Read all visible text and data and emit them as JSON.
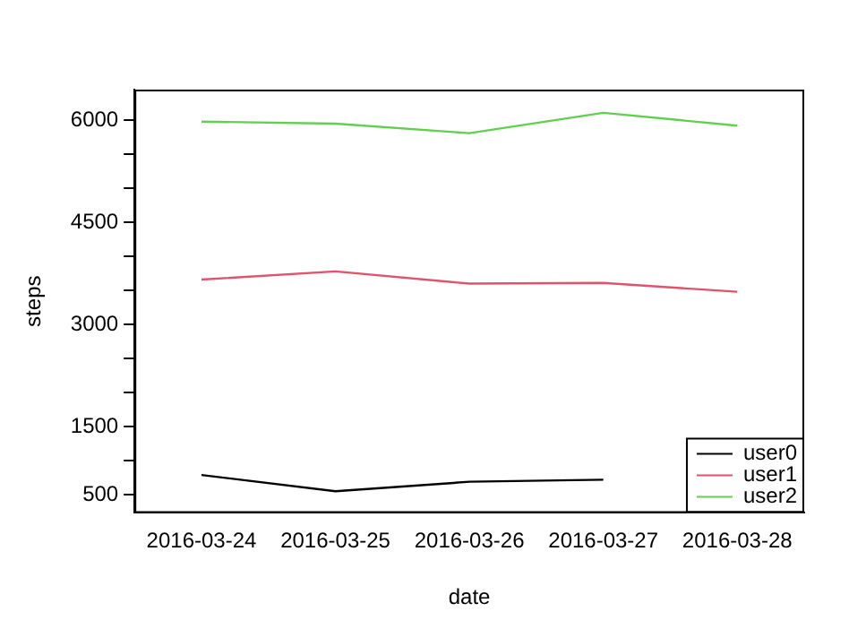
{
  "chart_data": {
    "type": "line",
    "xlabel": "date",
    "ylabel": "steps",
    "categories": [
      "2016-03-24",
      "2016-03-25",
      "2016-03-26",
      "2016-03-27",
      "2016-03-28"
    ],
    "series": [
      {
        "name": "user0",
        "color": "#000000",
        "values": [
          790,
          550,
          690,
          720,
          null
        ]
      },
      {
        "name": "user1",
        "color": "#df536b",
        "values": [
          3660,
          3780,
          3600,
          3610,
          3480
        ]
      },
      {
        "name": "user2",
        "color": "#61d04f",
        "values": [
          5980,
          5950,
          5810,
          6110,
          5920
        ]
      }
    ],
    "ylim": [
      233,
      6450
    ],
    "yticks": [
      500,
      {
        "value": 1000,
        "label": null
      },
      1500,
      {
        "value": 2000,
        "label": null
      },
      {
        "value": 2500,
        "label": null
      },
      3000,
      {
        "value": 3500,
        "label": null
      },
      {
        "value": 4000,
        "label": null
      },
      4500,
      {
        "value": 5000,
        "label": null
      },
      {
        "value": 5500,
        "label": null
      },
      6000
    ],
    "grid": false,
    "legend": "bottom right",
    "marker": "none",
    "line_style": "solid"
  }
}
